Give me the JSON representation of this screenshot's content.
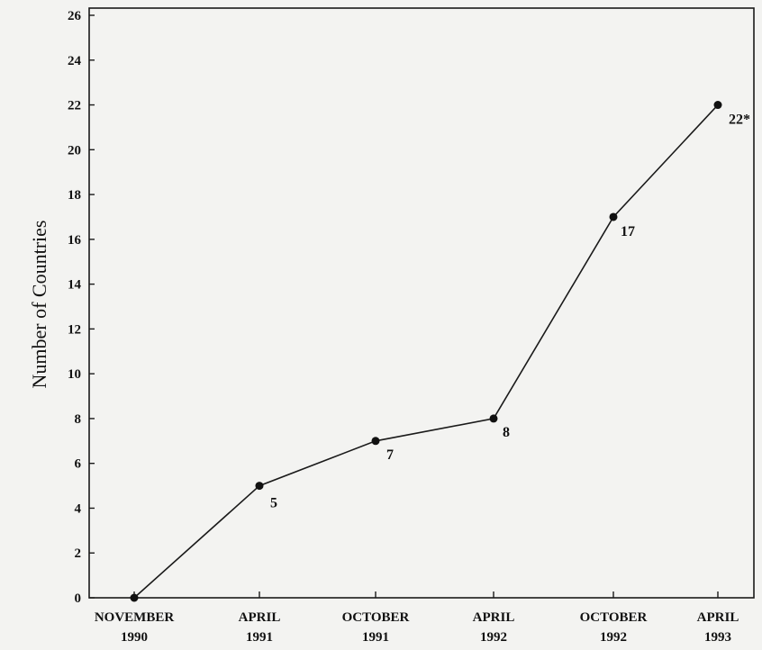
{
  "chart_data": {
    "type": "line",
    "title": "",
    "xlabel": "",
    "ylabel": "Number of Countries",
    "categories": [
      [
        "NOVEMBER",
        "1990"
      ],
      [
        "APRIL",
        "1991"
      ],
      [
        "OCTOBER",
        "1991"
      ],
      [
        "APRIL",
        "1992"
      ],
      [
        "OCTOBER",
        "1992"
      ],
      [
        "APRIL",
        "1993"
      ]
    ],
    "series": [
      {
        "values": [
          0,
          5,
          7,
          8,
          17,
          22
        ]
      }
    ],
    "data_labels": [
      "",
      "5",
      "7",
      "8",
      "17",
      "22*"
    ],
    "ylim": [
      0,
      26
    ],
    "yticks": [
      0,
      2,
      4,
      6,
      8,
      10,
      12,
      14,
      16,
      18,
      20,
      22,
      24,
      26
    ],
    "grid": false,
    "legend": "none",
    "colors": {
      "line": "#1a1a1a",
      "marker": "#111111",
      "frame": "#1a1a1a"
    }
  }
}
